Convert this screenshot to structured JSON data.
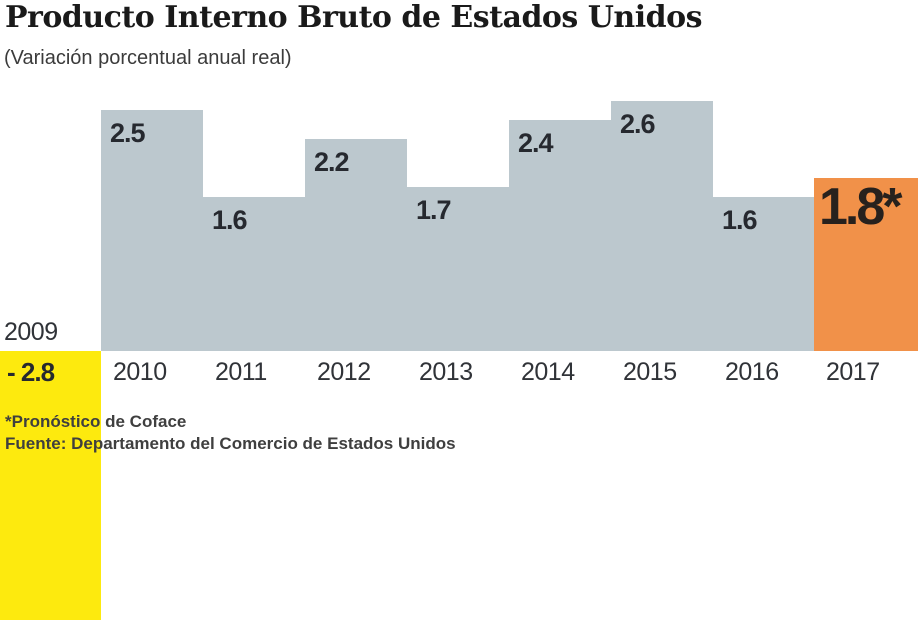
{
  "header": {
    "title": "Producto Interno Bruto de Estados Unidos",
    "subtitle": "(Variación porcentual anual real)"
  },
  "chart_data": {
    "type": "bar",
    "title": "Producto Interno Bruto de Estados Unidos",
    "subtitle": "(Variación porcentual anual real)",
    "categories": [
      "2009",
      "2010",
      "2011",
      "2012",
      "2013",
      "2014",
      "2015",
      "2016",
      "2017"
    ],
    "values": [
      -2.8,
      2.5,
      1.6,
      2.2,
      1.7,
      2.4,
      2.6,
      1.6,
      1.8
    ],
    "bar_labels": [
      "- 2.8",
      "2.5",
      "1.6",
      "2.2",
      "1.7",
      "2.4",
      "2.6",
      "1.6",
      "1.8*"
    ],
    "bar_colors": [
      "#fdea0e",
      "#bcc8ce",
      "#bcc8ce",
      "#bcc8ce",
      "#bcc8ce",
      "#bcc8ce",
      "#bcc8ce",
      "#bcc8ce",
      "#f19149"
    ],
    "xlabel": "",
    "ylabel": "",
    "ylim": [
      -2.8,
      2.6
    ],
    "grid": false,
    "legend": "none"
  },
  "footer": {
    "note": "*Pronóstico de Coface",
    "source": "Fuente: Departamento del Comercio de Estados Unidos"
  },
  "colors": {
    "background": "#ffffff",
    "bar_gray": "#bcc8ce",
    "bar_orange": "#f19149",
    "bar_yellow": "#fdea0e",
    "value_label": "#26292f",
    "year_label": "#303338",
    "title_text": "#1a1a1a",
    "footer_text": "#3f3f3f"
  }
}
